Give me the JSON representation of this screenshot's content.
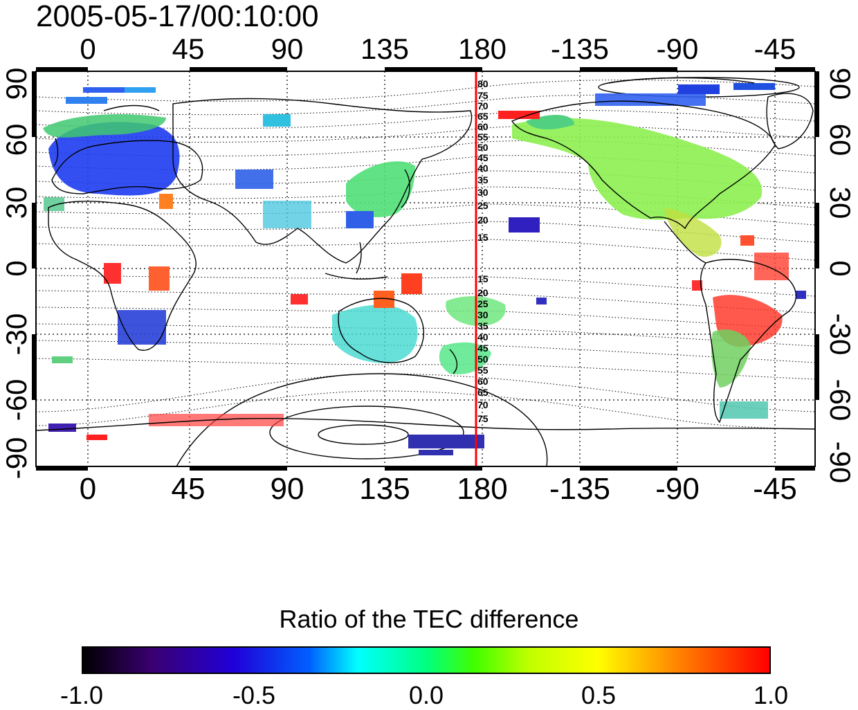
{
  "timestamp": "2005-05-17/00:10:00",
  "axes": {
    "top_lon": [
      "0",
      "45",
      "90",
      "135",
      "180",
      "-135",
      "-90",
      "-45"
    ],
    "bottom_lon": [
      "0",
      "45",
      "90",
      "135",
      "180",
      "-135",
      "-90",
      "-45"
    ],
    "left_lat": [
      "90",
      "60",
      "30",
      "0",
      "-30",
      "-60",
      "-90"
    ],
    "right_lat": [
      "90",
      "60",
      "30",
      "0",
      "-30",
      "-60",
      "-90"
    ]
  },
  "meridian_line": {
    "longitude": 178,
    "color": "#ff0000"
  },
  "contour_labels_north": [
    "80",
    "75",
    "70",
    "65",
    "60",
    "55",
    "50",
    "45",
    "40",
    "35",
    "30",
    "25",
    "20",
    "15"
  ],
  "contour_labels_south": [
    "15",
    "20",
    "25",
    "30",
    "35",
    "40",
    "45",
    "50",
    "55",
    "60",
    "65",
    "70",
    "75"
  ],
  "colorbar": {
    "title": "Ratio of the TEC difference",
    "tick_labels": [
      "-1.0",
      "-0.5",
      "0.0",
      "0.5",
      "1.0"
    ],
    "range": [
      -1.0,
      1.0
    ],
    "colors": [
      "#000000",
      "#3a0070",
      "#2000d8",
      "#0060ff",
      "#00ffff",
      "#00ff80",
      "#40ff00",
      "#c0ff00",
      "#ffff00",
      "#ff8000",
      "#ff0000"
    ]
  },
  "data_regions": [
    {
      "name": "europe",
      "value": -0.5,
      "color": "#1e3cf0"
    },
    {
      "name": "north-america",
      "value": 0.15,
      "color": "#8cf050"
    },
    {
      "name": "east-asia",
      "value": 0.1,
      "color": "#50e078"
    },
    {
      "name": "australia",
      "value": 0.0,
      "color": "#40d8d0"
    },
    {
      "name": "south-america",
      "value": 0.9,
      "color": "#ff2020"
    }
  ]
}
